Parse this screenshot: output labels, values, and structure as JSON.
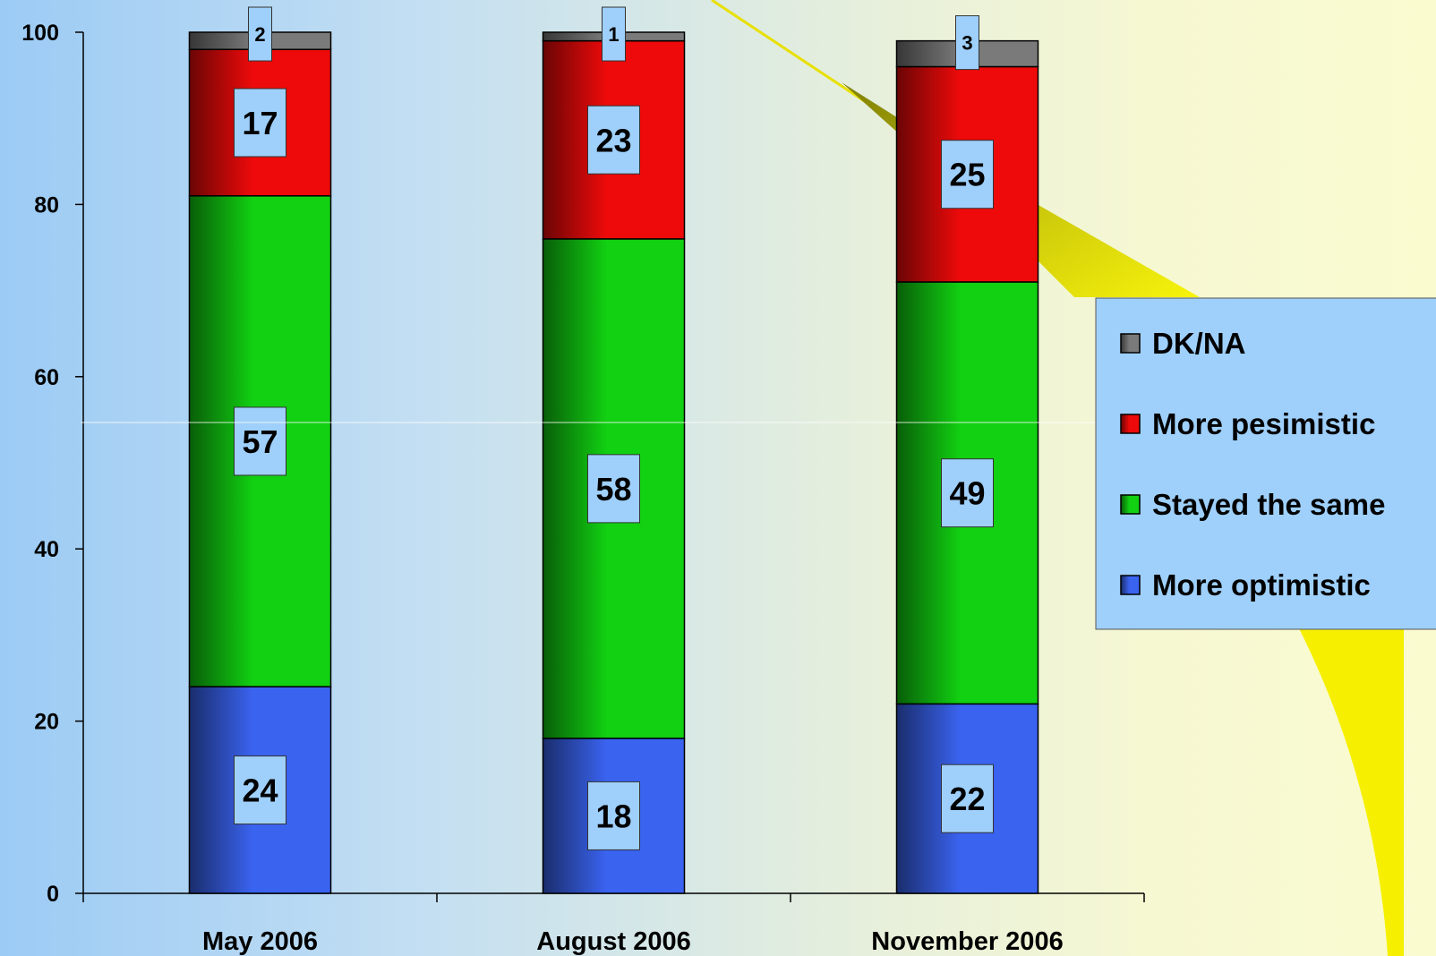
{
  "chart_data": {
    "type": "bar",
    "stacked": true,
    "categories": [
      "May 2006",
      "August 2006",
      "November 2006"
    ],
    "series": [
      {
        "name": "More optimistic",
        "values": [
          24,
          18,
          22
        ],
        "color": "#3a63f0"
      },
      {
        "name": "Stayed the same",
        "values": [
          57,
          58,
          49
        ],
        "color": "#12d012"
      },
      {
        "name": "More pesimistic",
        "values": [
          17,
          23,
          25
        ],
        "color": "#ee0a0a"
      },
      {
        "name": "DK/NA",
        "values": [
          2,
          1,
          3
        ],
        "color": "#7a7a7a"
      }
    ],
    "ylim": [
      0,
      100
    ],
    "yticks": [
      0,
      20,
      40,
      60,
      80,
      100
    ],
    "title": "",
    "xlabel": "",
    "ylabel": "",
    "grid": false,
    "legend_position": "right",
    "legend_order": [
      "DK/NA",
      "More pesimistic",
      "Stayed the same",
      "More optimistic"
    ],
    "colors": {
      "label_box_fill": "#9fd0fb",
      "legend_fill": "#9fd0fb",
      "callout_yellow": "#f6f000"
    }
  }
}
